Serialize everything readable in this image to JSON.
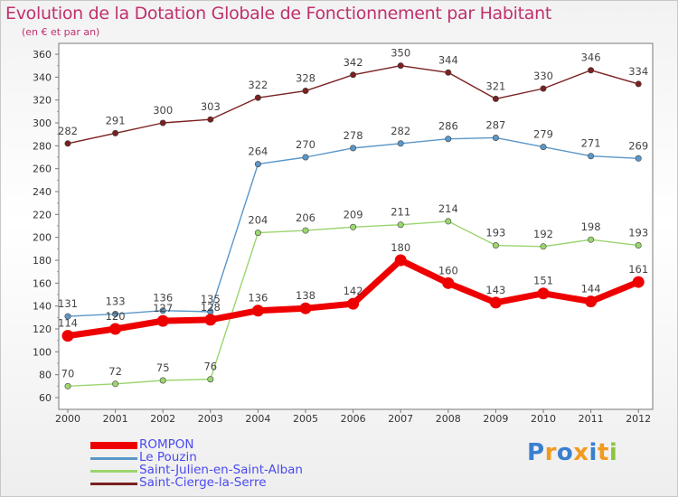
{
  "header": {
    "title": "Evolution de la Dotation Globale de Fonctionnement par Habitant",
    "subtitle": "(en € et par an)"
  },
  "brand": {
    "text": "Proxiti",
    "colors": [
      "#3a7fd0",
      "#f29a1e",
      "#3a7fd0",
      "#f29a1e",
      "#3a7fd0",
      "#f29a1e",
      "#8cc63f"
    ]
  },
  "chart_data": {
    "type": "line",
    "title": "Evolution de la Dotation Globale de Fonctionnement par Habitant",
    "subtitle": "(en € et par an)",
    "xlabel": "",
    "ylabel": "",
    "ylim": [
      60,
      360
    ],
    "ytick_step": 20,
    "grid": false,
    "legend_position": "bottom-left",
    "x": [
      "2000",
      "2001",
      "2002",
      "2003",
      "2004",
      "2005",
      "2006",
      "2007",
      "2008",
      "2009",
      "2010",
      "2011",
      "2012"
    ],
    "series": [
      {
        "name": "ROMPON",
        "color": "#ee0000",
        "emphasis": true,
        "values": [
          114,
          120,
          127,
          128,
          136,
          138,
          142,
          180,
          160,
          143,
          151,
          144,
          161
        ]
      },
      {
        "name": "Le Pouzin",
        "color": "#5b97c9",
        "emphasis": false,
        "values": [
          131,
          133,
          136,
          135,
          264,
          270,
          278,
          282,
          286,
          287,
          279,
          271,
          269
        ]
      },
      {
        "name": "Saint-Julien-en-Saint-Alban",
        "color": "#9bd56e",
        "emphasis": false,
        "values": [
          70,
          72,
          75,
          76,
          204,
          206,
          209,
          211,
          214,
          193,
          192,
          198,
          193
        ]
      },
      {
        "name": "Saint-Cierge-la-Serre",
        "color": "#7a2020",
        "emphasis": false,
        "values": [
          282,
          291,
          300,
          303,
          322,
          328,
          342,
          350,
          344,
          321,
          330,
          346,
          334
        ]
      }
    ]
  }
}
